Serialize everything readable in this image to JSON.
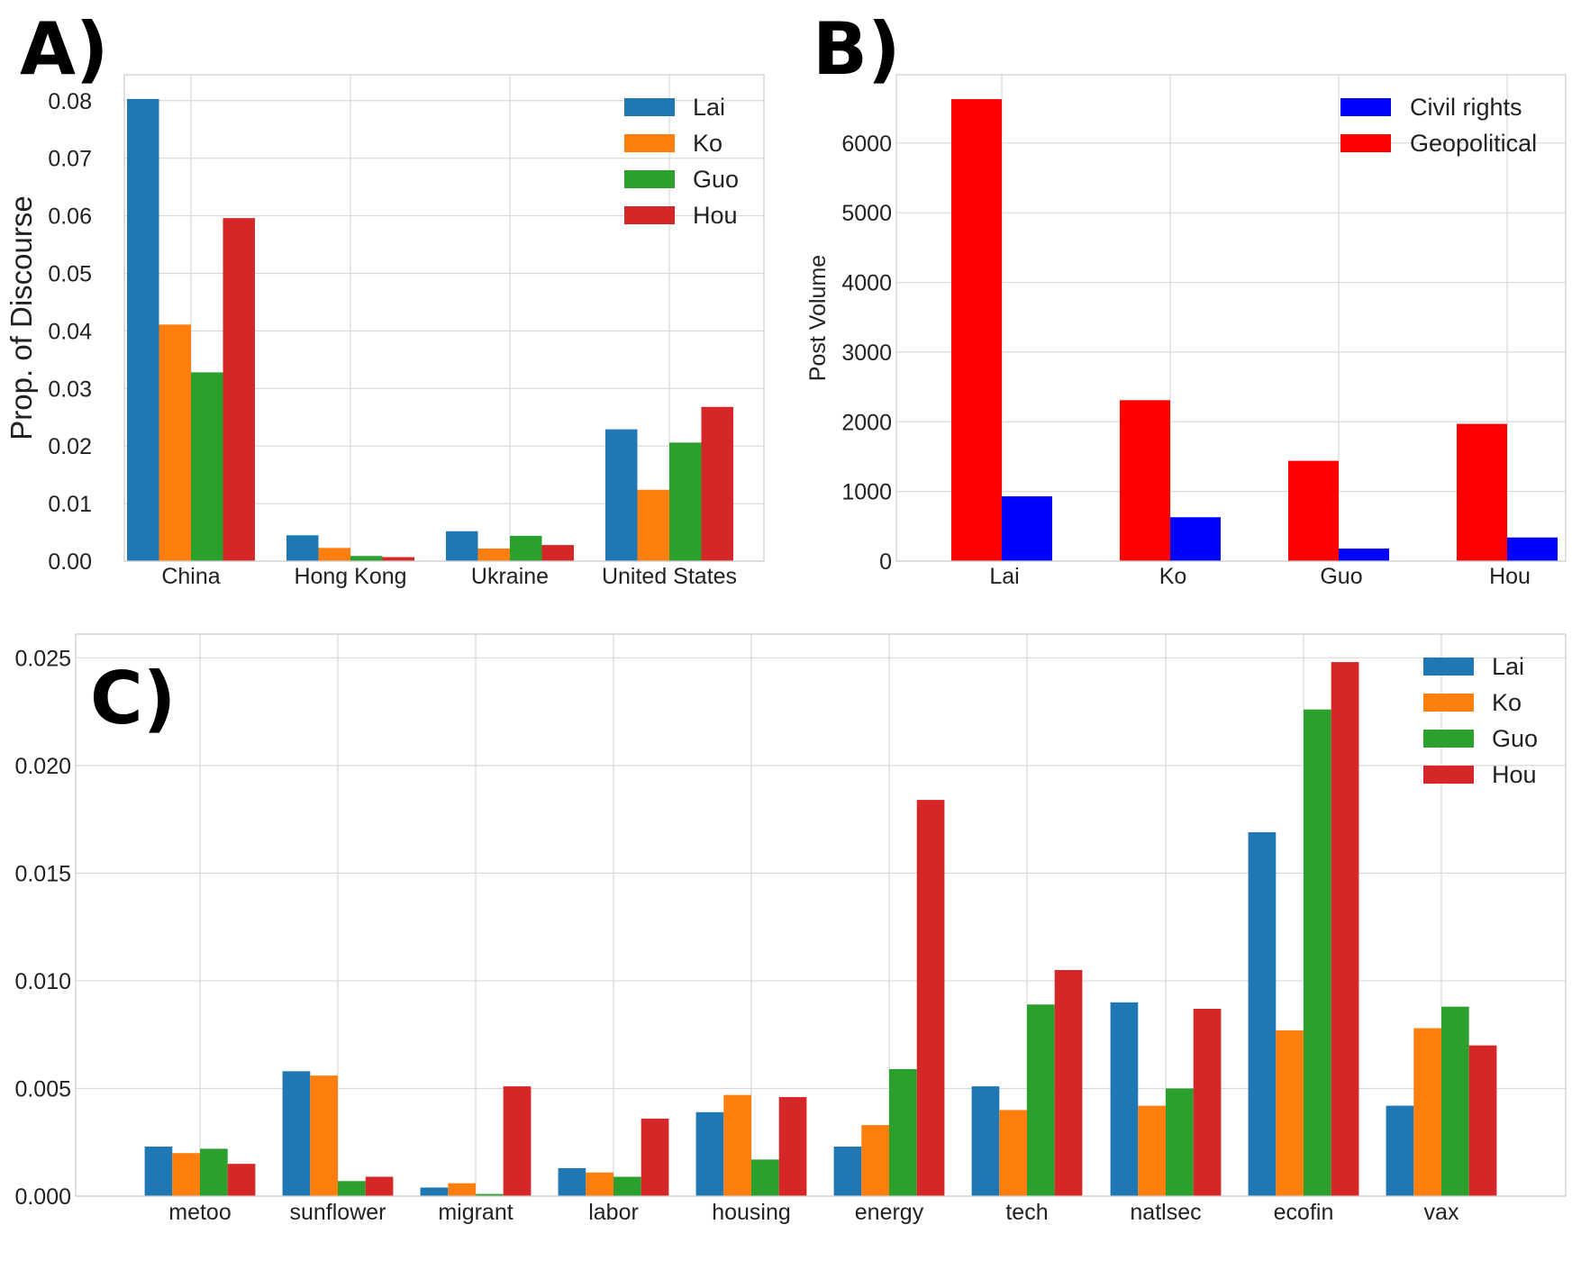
{
  "chart_data": [
    {
      "panel": "A)",
      "type": "bar",
      "ylabel": "Prop. of Discourse",
      "xlabel": "",
      "categories": [
        "China",
        "Hong Kong",
        "Ukraine",
        "United States"
      ],
      "ylim": [
        0,
        0.0845
      ],
      "yticks": [
        "0.00",
        "0.01",
        "0.02",
        "0.03",
        "0.04",
        "0.05",
        "0.06",
        "0.07",
        "0.08"
      ],
      "legend": "top-right",
      "series": [
        {
          "name": "Lai",
          "color": "#1f77b4",
          "values": [
            0.0803,
            0.0045,
            0.0052,
            0.0229
          ]
        },
        {
          "name": "Ko",
          "color": "#ff7f0e",
          "values": [
            0.0411,
            0.0023,
            0.0022,
            0.0124
          ]
        },
        {
          "name": "Guo",
          "color": "#2ca02c",
          "values": [
            0.0328,
            0.0009,
            0.0044,
            0.0206
          ]
        },
        {
          "name": "Hou",
          "color": "#d62728",
          "values": [
            0.0596,
            0.0007,
            0.0028,
            0.0268
          ]
        }
      ]
    },
    {
      "panel": "B)",
      "type": "bar",
      "ylabel": "Post Volume",
      "xlabel": "",
      "categories": [
        "Lai",
        "Ko",
        "Guo",
        "Hou"
      ],
      "ylim": [
        0,
        6980
      ],
      "yticks": [
        "0",
        "1000",
        "2000",
        "3000",
        "4000",
        "5000",
        "6000"
      ],
      "legend": "top-right",
      "legend_entries": [
        "Civil rights",
        "Geopolitical"
      ],
      "series": [
        {
          "name": "Geopolitical",
          "color": "#ff0000",
          "values": [
            6630,
            2310,
            1440,
            1970
          ]
        },
        {
          "name": "Civil rights",
          "color": "#0000ff",
          "values": [
            930,
            630,
            180,
            340
          ]
        }
      ]
    },
    {
      "panel": "C)",
      "type": "bar",
      "ylabel": "",
      "xlabel": "",
      "categories": [
        "metoo",
        "sunflower",
        "migrant",
        "labor",
        "housing",
        "energy",
        "tech",
        "natlsec",
        "ecofin",
        "vax"
      ],
      "ylim": [
        0,
        0.0261
      ],
      "yticks": [
        "0.000",
        "0.005",
        "0.010",
        "0.015",
        "0.020",
        "0.025"
      ],
      "legend": "top-right",
      "series": [
        {
          "name": "Lai",
          "color": "#1f77b4",
          "values": [
            0.0023,
            0.0058,
            0.0004,
            0.0013,
            0.0039,
            0.0023,
            0.0051,
            0.009,
            0.0169,
            0.0042
          ]
        },
        {
          "name": "Ko",
          "color": "#ff7f0e",
          "values": [
            0.002,
            0.0056,
            0.0006,
            0.0011,
            0.0047,
            0.0033,
            0.004,
            0.0042,
            0.0077,
            0.0078
          ]
        },
        {
          "name": "Guo",
          "color": "#2ca02c",
          "values": [
            0.0022,
            0.0007,
            0.0001,
            0.0009,
            0.0017,
            0.0059,
            0.0089,
            0.005,
            0.0226,
            0.0088
          ]
        },
        {
          "name": "Hou",
          "color": "#d62728",
          "values": [
            0.0015,
            0.0009,
            0.0051,
            0.0036,
            0.0046,
            0.0184,
            0.0105,
            0.0087,
            0.0248,
            0.007
          ]
        }
      ]
    }
  ]
}
